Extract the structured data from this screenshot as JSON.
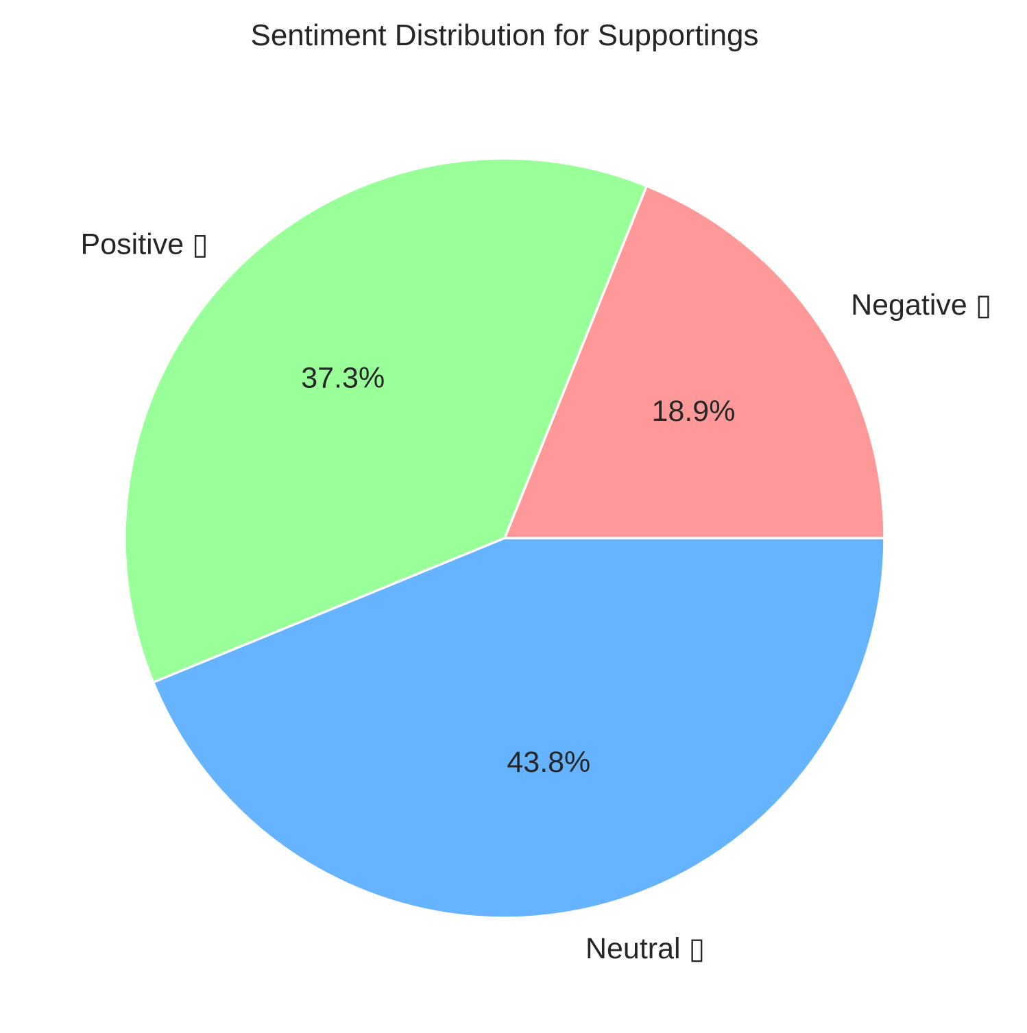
{
  "chart_data": {
    "type": "pie",
    "title": "Sentiment Distribution for Supportings",
    "categories": [
      "Negative ▯",
      "Positive ▯",
      "Neutral ▯"
    ],
    "values": [
      18.9,
      37.3,
      43.8
    ],
    "value_labels": [
      "18.9%",
      "37.3%",
      "43.8%"
    ],
    "colors": [
      "#ff9999",
      "#99ff99",
      "#66b3ff"
    ],
    "start_angle_deg": 0,
    "direction": "clockwise-on-screen",
    "legend": "none"
  }
}
